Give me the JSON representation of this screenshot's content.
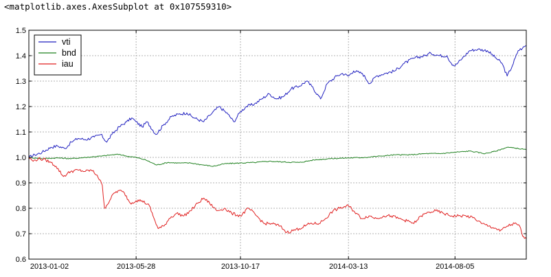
{
  "repr_text": "<matplotlib.axes.AxesSubplot at 0x107559310>",
  "chart_data": {
    "type": "line",
    "title": "",
    "xlabel": "",
    "ylabel": "",
    "x_ticks": [
      "2013-01-02",
      "2013-05-28",
      "2013-10-17",
      "2014-03-13",
      "2014-08-05"
    ],
    "x_range": [
      "2013-01-02",
      "2014-11-10"
    ],
    "y_ticks": [
      "0.6",
      "0.7",
      "0.8",
      "0.9",
      "1.0",
      "1.1",
      "1.2",
      "1.3",
      "1.4",
      "1.5"
    ],
    "ylim": [
      0.6,
      1.5
    ],
    "grid": true,
    "legend_position": "top-left",
    "series": [
      {
        "name": "vti",
        "color": "#1f1fbf",
        "points": [
          [
            "2013-01-02",
            1.0
          ],
          [
            "2013-01-10",
            1.01
          ],
          [
            "2013-01-20",
            1.02
          ],
          [
            "2013-02-01",
            1.04
          ],
          [
            "2013-02-10",
            1.045
          ],
          [
            "2013-02-20",
            1.035
          ],
          [
            "2013-03-01",
            1.06
          ],
          [
            "2013-03-10",
            1.075
          ],
          [
            "2013-03-20",
            1.07
          ],
          [
            "2013-04-01",
            1.08
          ],
          [
            "2013-04-10",
            1.09
          ],
          [
            "2013-04-18",
            1.06
          ],
          [
            "2013-04-25",
            1.09
          ],
          [
            "2013-05-05",
            1.12
          ],
          [
            "2013-05-15",
            1.14
          ],
          [
            "2013-05-22",
            1.155
          ],
          [
            "2013-05-28",
            1.14
          ],
          [
            "2013-06-05",
            1.12
          ],
          [
            "2013-06-12",
            1.14
          ],
          [
            "2013-06-24",
            1.09
          ],
          [
            "2013-07-05",
            1.13
          ],
          [
            "2013-07-15",
            1.16
          ],
          [
            "2013-07-25",
            1.17
          ],
          [
            "2013-08-05",
            1.175
          ],
          [
            "2013-08-15",
            1.155
          ],
          [
            "2013-08-28",
            1.14
          ],
          [
            "2013-09-05",
            1.165
          ],
          [
            "2013-09-18",
            1.2
          ],
          [
            "2013-09-30",
            1.17
          ],
          [
            "2013-10-08",
            1.14
          ],
          [
            "2013-10-17",
            1.18
          ],
          [
            "2013-10-25",
            1.2
          ],
          [
            "2013-11-05",
            1.21
          ],
          [
            "2013-11-15",
            1.23
          ],
          [
            "2013-11-25",
            1.25
          ],
          [
            "2013-12-05",
            1.23
          ],
          [
            "2013-12-15",
            1.24
          ],
          [
            "2013-12-25",
            1.27
          ],
          [
            "2014-01-05",
            1.28
          ],
          [
            "2014-01-15",
            1.3
          ],
          [
            "2014-01-22",
            1.28
          ],
          [
            "2014-02-03",
            1.23
          ],
          [
            "2014-02-12",
            1.29
          ],
          [
            "2014-02-25",
            1.32
          ],
          [
            "2014-03-05",
            1.33
          ],
          [
            "2014-03-13",
            1.32
          ],
          [
            "2014-03-20",
            1.34
          ],
          [
            "2014-04-01",
            1.33
          ],
          [
            "2014-04-11",
            1.29
          ],
          [
            "2014-04-20",
            1.32
          ],
          [
            "2014-05-01",
            1.33
          ],
          [
            "2014-05-15",
            1.34
          ],
          [
            "2014-05-28",
            1.37
          ],
          [
            "2014-06-10",
            1.39
          ],
          [
            "2014-06-25",
            1.4
          ],
          [
            "2014-07-03",
            1.41
          ],
          [
            "2014-07-15",
            1.4
          ],
          [
            "2014-07-25",
            1.4
          ],
          [
            "2014-07-31",
            1.37
          ],
          [
            "2014-08-05",
            1.36
          ],
          [
            "2014-08-15",
            1.39
          ],
          [
            "2014-08-25",
            1.42
          ],
          [
            "2014-09-05",
            1.425
          ],
          [
            "2014-09-18",
            1.42
          ],
          [
            "2014-09-30",
            1.39
          ],
          [
            "2014-10-08",
            1.37
          ],
          [
            "2014-10-15",
            1.32
          ],
          [
            "2014-10-22",
            1.36
          ],
          [
            "2014-10-30",
            1.42
          ],
          [
            "2014-11-05",
            1.43
          ],
          [
            "2014-11-10",
            1.44
          ]
        ]
      },
      {
        "name": "bnd",
        "color": "#1f801f",
        "points": [
          [
            "2013-01-02",
            1.0
          ],
          [
            "2013-01-20",
            0.995
          ],
          [
            "2013-02-10",
            0.998
          ],
          [
            "2013-03-01",
            0.995
          ],
          [
            "2013-03-20",
            1.0
          ],
          [
            "2013-04-10",
            1.005
          ],
          [
            "2013-04-25",
            1.01
          ],
          [
            "2013-05-05",
            1.012
          ],
          [
            "2013-05-15",
            1.005
          ],
          [
            "2013-05-28",
            1.0
          ],
          [
            "2013-06-10",
            0.99
          ],
          [
            "2013-06-25",
            0.97
          ],
          [
            "2013-07-10",
            0.98
          ],
          [
            "2013-07-25",
            0.978
          ],
          [
            "2013-08-10",
            0.978
          ],
          [
            "2013-08-28",
            0.97
          ],
          [
            "2013-09-10",
            0.965
          ],
          [
            "2013-09-25",
            0.975
          ],
          [
            "2013-10-17",
            0.978
          ],
          [
            "2013-11-05",
            0.98
          ],
          [
            "2013-11-25",
            0.985
          ],
          [
            "2013-12-15",
            0.982
          ],
          [
            "2014-01-05",
            0.98
          ],
          [
            "2014-01-25",
            0.99
          ],
          [
            "2014-02-15",
            0.995
          ],
          [
            "2014-03-13",
            0.998
          ],
          [
            "2014-04-05",
            1.0
          ],
          [
            "2014-04-25",
            1.005
          ],
          [
            "2014-05-15",
            1.01
          ],
          [
            "2014-06-05",
            1.01
          ],
          [
            "2014-06-25",
            1.015
          ],
          [
            "2014-07-15",
            1.015
          ],
          [
            "2014-08-05",
            1.02
          ],
          [
            "2014-08-25",
            1.025
          ],
          [
            "2014-09-15",
            1.015
          ],
          [
            "2014-09-30",
            1.025
          ],
          [
            "2014-10-15",
            1.04
          ],
          [
            "2014-10-30",
            1.035
          ],
          [
            "2014-11-10",
            1.03
          ]
        ]
      },
      {
        "name": "iau",
        "color": "#e01f1f",
        "points": [
          [
            "2013-01-02",
            1.0
          ],
          [
            "2013-01-08",
            0.985
          ],
          [
            "2013-01-15",
            0.995
          ],
          [
            "2013-01-25",
            0.99
          ],
          [
            "2013-02-01",
            0.98
          ],
          [
            "2013-02-08",
            0.965
          ],
          [
            "2013-02-18",
            0.925
          ],
          [
            "2013-02-28",
            0.945
          ],
          [
            "2013-03-10",
            0.95
          ],
          [
            "2013-03-20",
            0.945
          ],
          [
            "2013-03-28",
            0.95
          ],
          [
            "2013-04-05",
            0.93
          ],
          [
            "2013-04-12",
            0.89
          ],
          [
            "2013-04-15",
            0.8
          ],
          [
            "2013-04-22",
            0.83
          ],
          [
            "2013-04-28",
            0.86
          ],
          [
            "2013-05-05",
            0.87
          ],
          [
            "2013-05-12",
            0.86
          ],
          [
            "2013-05-20",
            0.82
          ],
          [
            "2013-05-28",
            0.83
          ],
          [
            "2013-06-05",
            0.83
          ],
          [
            "2013-06-15",
            0.81
          ],
          [
            "2013-06-20",
            0.77
          ],
          [
            "2013-06-27",
            0.72
          ],
          [
            "2013-07-05",
            0.73
          ],
          [
            "2013-07-12",
            0.76
          ],
          [
            "2013-07-22",
            0.78
          ],
          [
            "2013-08-01",
            0.77
          ],
          [
            "2013-08-10",
            0.79
          ],
          [
            "2013-08-20",
            0.82
          ],
          [
            "2013-08-28",
            0.84
          ],
          [
            "2013-09-05",
            0.82
          ],
          [
            "2013-09-15",
            0.79
          ],
          [
            "2013-09-25",
            0.8
          ],
          [
            "2013-10-05",
            0.78
          ],
          [
            "2013-10-17",
            0.77
          ],
          [
            "2013-10-28",
            0.8
          ],
          [
            "2013-11-08",
            0.77
          ],
          [
            "2013-11-18",
            0.74
          ],
          [
            "2013-11-28",
            0.74
          ],
          [
            "2013-12-10",
            0.73
          ],
          [
            "2013-12-19",
            0.705
          ],
          [
            "2014-01-05",
            0.72
          ],
          [
            "2014-01-20",
            0.74
          ],
          [
            "2014-02-01",
            0.74
          ],
          [
            "2014-02-10",
            0.76
          ],
          [
            "2014-02-20",
            0.79
          ],
          [
            "2014-03-01",
            0.8
          ],
          [
            "2014-03-13",
            0.81
          ],
          [
            "2014-03-20",
            0.79
          ],
          [
            "2014-03-31",
            0.76
          ],
          [
            "2014-04-10",
            0.77
          ],
          [
            "2014-04-20",
            0.76
          ],
          [
            "2014-04-30",
            0.77
          ],
          [
            "2014-05-10",
            0.77
          ],
          [
            "2014-05-20",
            0.76
          ],
          [
            "2014-06-01",
            0.75
          ],
          [
            "2014-06-10",
            0.74
          ],
          [
            "2014-06-20",
            0.77
          ],
          [
            "2014-07-01",
            0.785
          ],
          [
            "2014-07-10",
            0.79
          ],
          [
            "2014-07-20",
            0.78
          ],
          [
            "2014-07-31",
            0.77
          ],
          [
            "2014-08-10",
            0.77
          ],
          [
            "2014-08-20",
            0.77
          ],
          [
            "2014-09-01",
            0.76
          ],
          [
            "2014-09-10",
            0.74
          ],
          [
            "2014-09-20",
            0.73
          ],
          [
            "2014-09-30",
            0.72
          ],
          [
            "2014-10-05",
            0.71
          ],
          [
            "2014-10-15",
            0.73
          ],
          [
            "2014-10-25",
            0.74
          ],
          [
            "2014-11-01",
            0.73
          ],
          [
            "2014-11-05",
            0.69
          ],
          [
            "2014-11-10",
            0.68
          ]
        ]
      }
    ]
  }
}
